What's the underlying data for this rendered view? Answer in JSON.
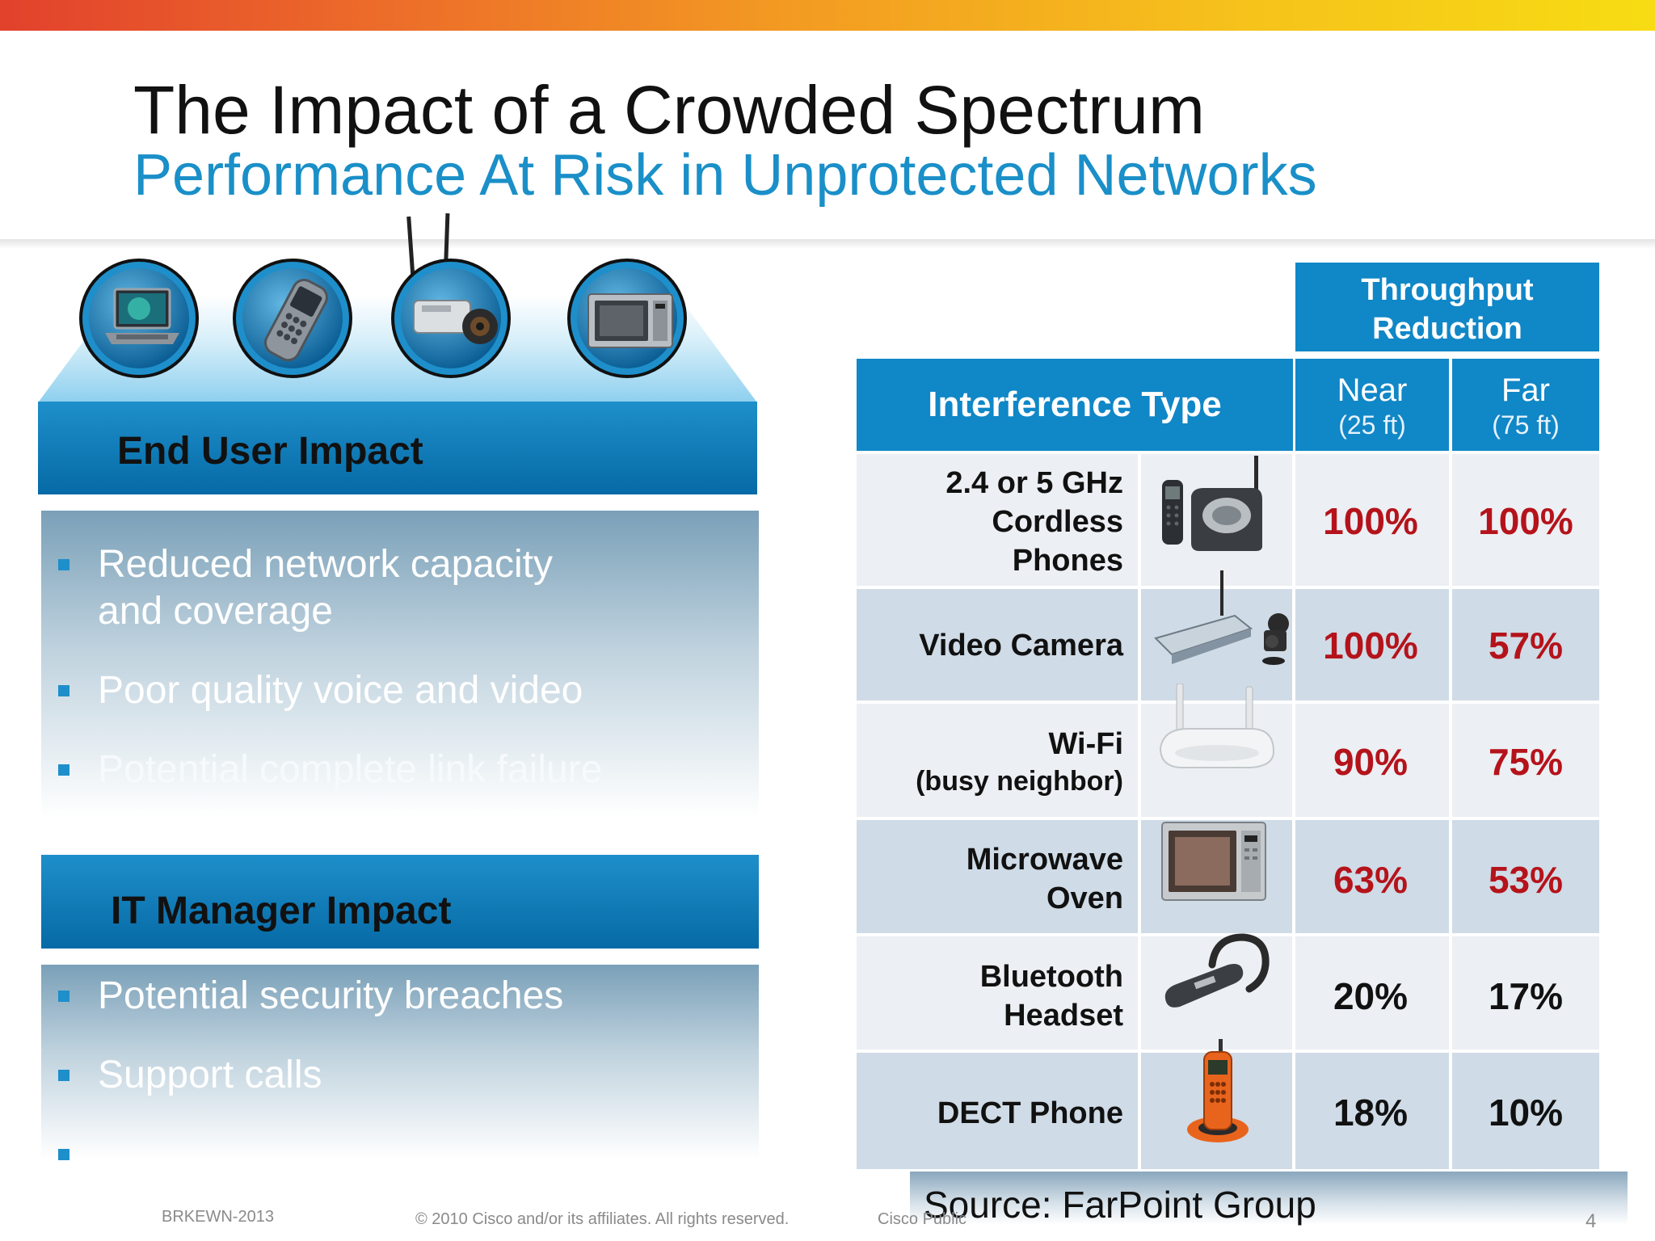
{
  "slide": {
    "title": "The Impact of a Crowded Spectrum",
    "subtitle": "Performance At Risk in Unprotected Networks"
  },
  "icons": [
    "laptop-icon",
    "smartphone-icon",
    "video-camera-icon",
    "microwave-icon"
  ],
  "end_user": {
    "heading": "End User Impact",
    "bullets": [
      "Reduced  network capacity and coverage",
      "Poor quality voice and video",
      "Potential complete link failure"
    ]
  },
  "it_manager": {
    "heading": "IT Manager Impact",
    "bullets": [
      "Potential security breaches",
      "Support calls",
      ""
    ]
  },
  "table": {
    "group_header": "Throughput Reduction",
    "col_type": "Interference Type",
    "col_near": "Near",
    "col_near_sub": "(25 ft)",
    "col_far": "Far",
    "col_far_sub": "(75 ft)",
    "rows": [
      {
        "lines": [
          "2.4 or 5 GHz",
          "Cordless",
          "Phones"
        ],
        "near": "100%",
        "far": "100%",
        "near_color": "red",
        "far_color": "red"
      },
      {
        "lines": [
          "Video Camera"
        ],
        "near": "100%",
        "far": "57%",
        "near_color": "red",
        "far_color": "red"
      },
      {
        "lines": [
          "Wi-Fi",
          "(busy neighbor)"
        ],
        "near": "90%",
        "far": "75%",
        "near_color": "red",
        "far_color": "red"
      },
      {
        "lines": [
          "Microwave",
          "Oven"
        ],
        "near": "63%",
        "far": "53%",
        "near_color": "red",
        "far_color": "red"
      },
      {
        "lines": [
          "Bluetooth",
          "Headset"
        ],
        "near": "20%",
        "far": "17%",
        "near_color": "black",
        "far_color": "black"
      },
      {
        "lines": [
          "DECT Phone"
        ],
        "near": "18%",
        "far": "10%",
        "near_color": "black",
        "far_color": "black"
      }
    ]
  },
  "source": "Source:  FarPoint Group",
  "footer": {
    "session": "BRKEWN-2013",
    "copyright": "© 2010 Cisco and/or its affiliates. All rights reserved.",
    "classification": "Cisco Public",
    "page": "4"
  },
  "colors": {
    "accent_blue": "#1087c7",
    "value_red": "#b5131b",
    "title_blue": "#1a8fc8"
  }
}
